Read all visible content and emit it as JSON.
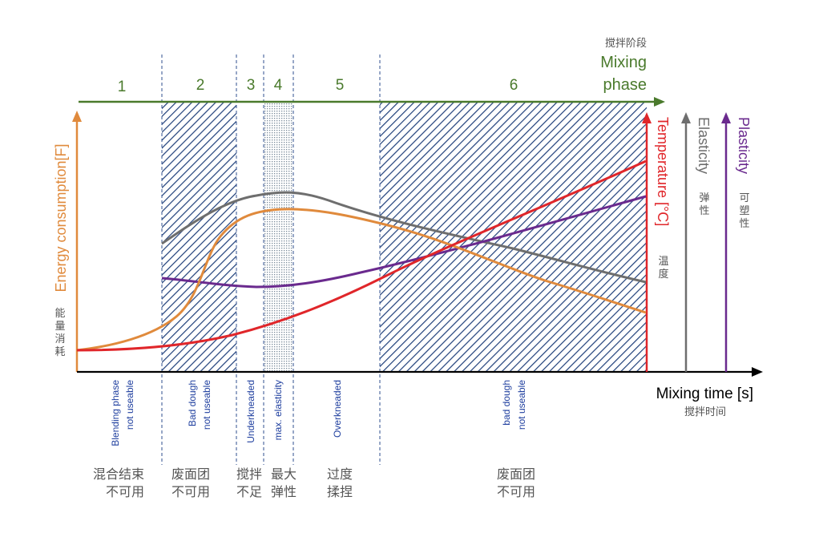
{
  "phase_header": {
    "cn": "搅拌阶段",
    "line1": "Mixing",
    "line2": "phase",
    "numbers": [
      "1",
      "2",
      "3",
      "4",
      "5",
      "6"
    ]
  },
  "left_axis": {
    "label": "Energy consumption[F]",
    "cn": [
      "能",
      "量",
      "消",
      "耗"
    ]
  },
  "right_axes": {
    "temperature": {
      "label": "Temperature [°C]",
      "cn": [
        "温",
        "度"
      ]
    },
    "elasticity": {
      "label": "Elasticity",
      "cn": [
        "弹",
        "性"
      ]
    },
    "plasticity": {
      "label": "Plasticity",
      "cn": [
        "可",
        "塑",
        "性"
      ]
    }
  },
  "x_axis": {
    "label": "Mixing time [s]",
    "cn": "搅拌时间"
  },
  "phase_labels_en": [
    [
      "Blending phase",
      "not useable"
    ],
    [
      "Bad dough",
      "not useable"
    ],
    [
      "Underkneaded"
    ],
    [
      "max. elasticity"
    ],
    [
      "Overkneaded"
    ],
    [
      "bad dough",
      "not useable"
    ]
  ],
  "phase_labels_cn": [
    [
      "混合结束",
      "不可用"
    ],
    [
      "废面团",
      "不可用"
    ],
    [
      "搅拌",
      "不足"
    ],
    [
      "最大",
      "弹性"
    ],
    [
      "过度",
      "揉捏"
    ],
    [
      "废面团",
      "不可用"
    ]
  ],
  "colors": {
    "phase_green": "#4a7a2c",
    "energy": "#e08a3c",
    "temperature": "#e0262a",
    "elasticity": "#6e6e6e",
    "plasticity": "#6a2a8e",
    "hatch": "#1f3f7a",
    "axis": "#000000"
  }
}
